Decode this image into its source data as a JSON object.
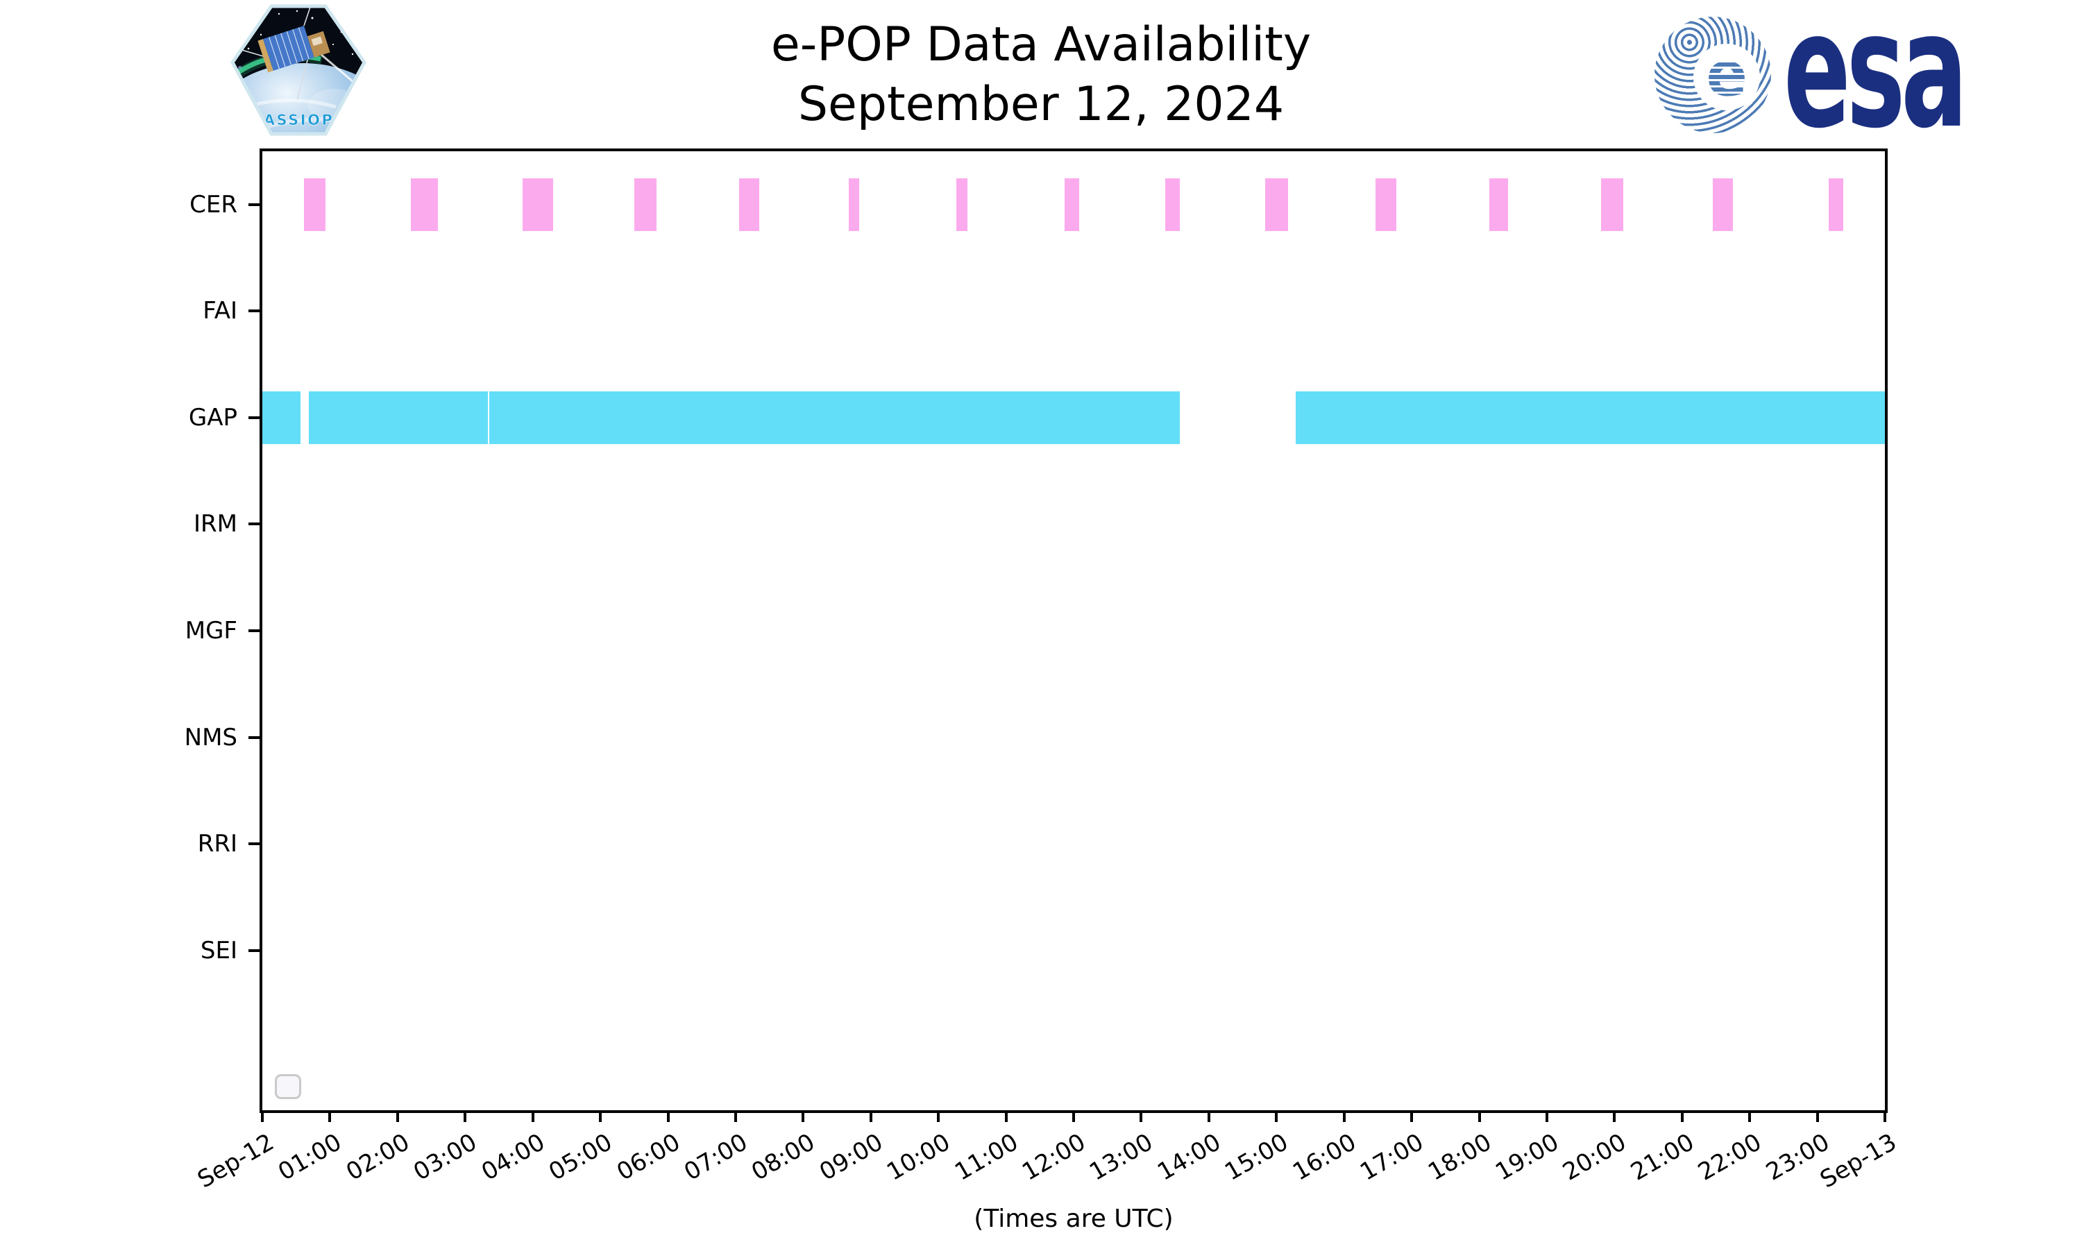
{
  "page": {
    "title_line1": "e-POP Data Availability",
    "title_line2": "September 12, 2024",
    "xaxis_title": "(Times are UTC)"
  },
  "logos": {
    "cassiope_label": "CASSIOPE",
    "esa_label": "esa",
    "esa_e_glyph": "e",
    "esa_navy": "#1b2f80",
    "esa_globe_blue": "#4d7bb5"
  },
  "chart_data": {
    "type": "bar",
    "subtype": "availability-timeline-gantt",
    "title": "e-POP Data Availability",
    "subtitle": "September 12, 2024",
    "xlabel": "(Times are UTC)",
    "grid": false,
    "legend": {
      "visible": true,
      "entries": [],
      "note": "empty rounded legend box at lower left of plot"
    },
    "x_axis": {
      "unit": "time UTC",
      "range_hours": [
        0,
        24
      ],
      "tick_interval_hours": 1,
      "tick_labels": [
        "Sep-12",
        "01:00",
        "02:00",
        "03:00",
        "04:00",
        "05:00",
        "06:00",
        "07:00",
        "08:00",
        "09:00",
        "10:00",
        "11:00",
        "12:00",
        "13:00",
        "14:00",
        "15:00",
        "16:00",
        "17:00",
        "18:00",
        "19:00",
        "20:00",
        "21:00",
        "22:00",
        "23:00",
        "Sep-13"
      ],
      "tick_label_rotation_deg": 30
    },
    "y_axis": {
      "categories": [
        "CER",
        "FAI",
        "GAP",
        "IRM",
        "MGF",
        "NMS",
        "RRI",
        "SEI"
      ],
      "slots": 9
    },
    "colors": {
      "CER": "#fcaaee",
      "GAP": "#62def9",
      "frame": "#000000",
      "legend_border": "#c9c9c9"
    },
    "series": [
      {
        "name": "CER",
        "color": "#fcaaee",
        "intervals_hours": [
          [
            0.62,
            0.93
          ],
          [
            2.2,
            2.6
          ],
          [
            3.85,
            4.3
          ],
          [
            5.5,
            5.83
          ],
          [
            7.05,
            7.35
          ],
          [
            8.67,
            8.83
          ],
          [
            10.27,
            10.43
          ],
          [
            11.87,
            12.08
          ],
          [
            13.35,
            13.57
          ],
          [
            14.83,
            15.17
          ],
          [
            16.47,
            16.77
          ],
          [
            18.15,
            18.43
          ],
          [
            19.8,
            20.13
          ],
          [
            21.45,
            21.75
          ],
          [
            23.17,
            23.38
          ]
        ],
        "intervals_utc": [
          "00:37–00:56",
          "02:12–02:36",
          "03:51–04:18",
          "05:30–05:50",
          "07:03–07:21",
          "08:40–08:50",
          "10:16–10:26",
          "11:52–12:05",
          "13:21–13:34",
          "14:50–15:10",
          "16:28–16:46",
          "18:09–18:26",
          "19:48–20:08",
          "21:27–21:45",
          "23:10–23:23"
        ]
      },
      {
        "name": "FAI",
        "color": null,
        "intervals_hours": [],
        "intervals_utc": []
      },
      {
        "name": "GAP",
        "color": "#62def9",
        "intervals_hours": [
          [
            0.0,
            0.56
          ],
          [
            0.69,
            3.34
          ],
          [
            3.36,
            13.57
          ],
          [
            15.28,
            24.0
          ]
        ],
        "intervals_utc": [
          "00:00–00:34",
          "00:41–03:20",
          "03:22–13:34",
          "15:17–24:00"
        ]
      },
      {
        "name": "IRM",
        "color": null,
        "intervals_hours": [],
        "intervals_utc": []
      },
      {
        "name": "MGF",
        "color": null,
        "intervals_hours": [],
        "intervals_utc": []
      },
      {
        "name": "NMS",
        "color": null,
        "intervals_hours": [],
        "intervals_utc": []
      },
      {
        "name": "RRI",
        "color": null,
        "intervals_hours": [],
        "intervals_utc": []
      },
      {
        "name": "SEI",
        "color": null,
        "intervals_hours": [],
        "intervals_utc": []
      }
    ]
  }
}
